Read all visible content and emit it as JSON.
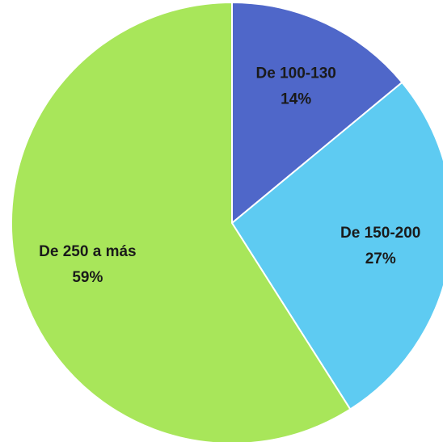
{
  "chart_data": {
    "type": "pie",
    "categories": [
      "De 100-130",
      "De 150-200",
      "De 250 a más"
    ],
    "values": [
      14,
      27,
      59
    ],
    "value_labels": [
      "14%",
      "27%",
      "59%"
    ],
    "colors": [
      "#4f67c9",
      "#5ecbf2",
      "#a8e65a"
    ]
  }
}
